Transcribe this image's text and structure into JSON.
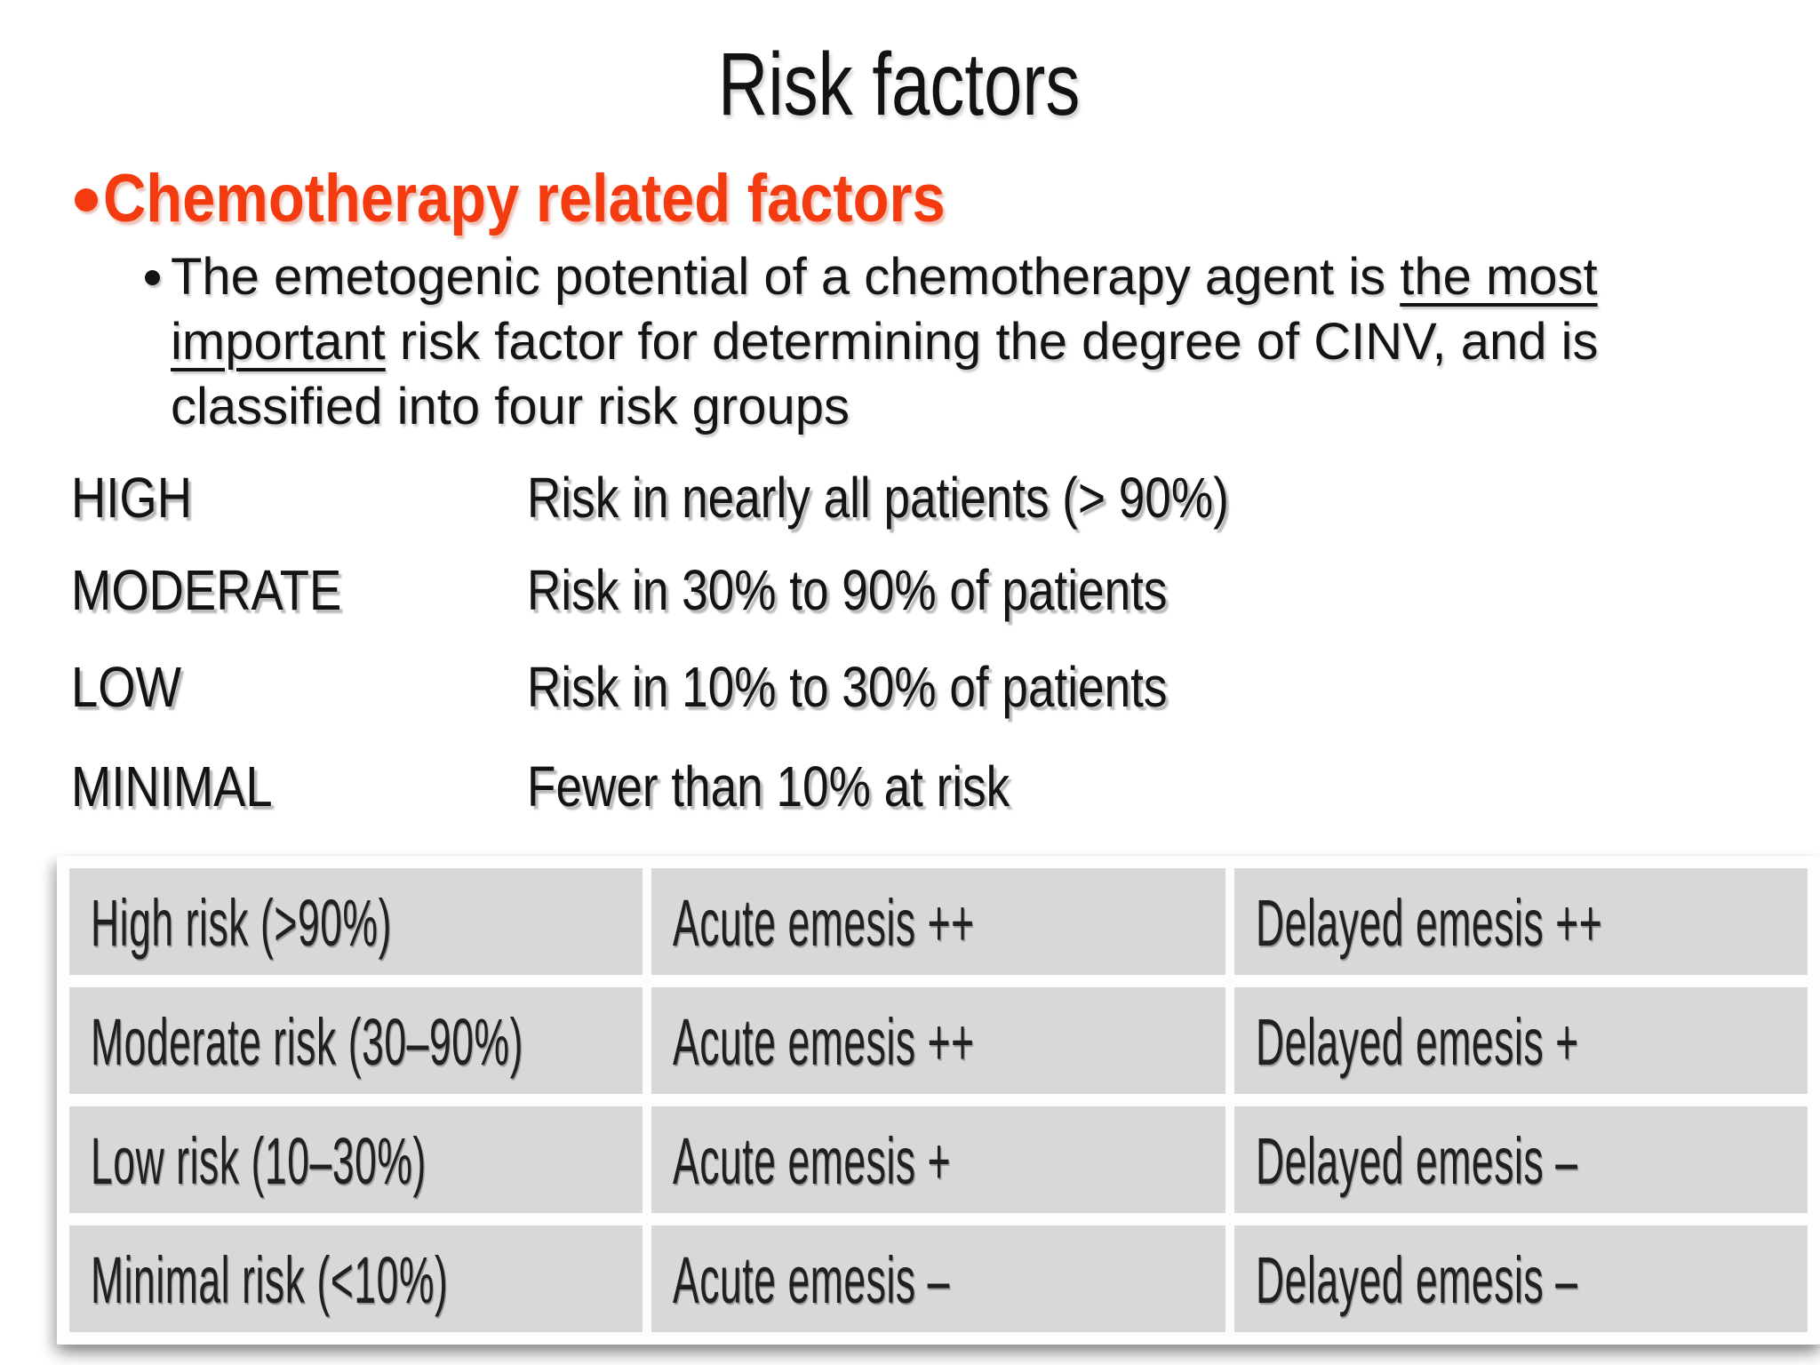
{
  "slide": {
    "title": "Risk factors",
    "heading": "Chemotherapy related factors",
    "paragraph": {
      "line1_text": "The emetogenic potential of a chemotherapy agent is ",
      "line1_underlined": "the most",
      "line2_underlined": "important",
      "line2_text": " risk factor for determining the degree of CINV, and is",
      "line3_text": "classified into four risk groups"
    },
    "risk_levels": [
      {
        "label": "HIGH",
        "desc": "Risk in nearly all patients (> 90%)"
      },
      {
        "label": "MODERATE",
        "desc": "Risk in 30% to 90% of patients"
      },
      {
        "label": "LOW",
        "desc": "Risk in 10% to 30% of patients"
      },
      {
        "label": "MINIMAL",
        "desc": "Fewer than 10% at risk"
      }
    ],
    "table": {
      "rows": [
        [
          "High risk (>90%)",
          "Acute emesis ++",
          "Delayed emesis ++"
        ],
        [
          "Moderate risk (30–90%)",
          "Acute emesis ++",
          "Delayed emesis +"
        ],
        [
          "Low risk (10–30%)",
          "Acute emesis +",
          "Delayed emesis –"
        ],
        [
          "Minimal risk (<10%)",
          "Acute emesis –",
          "Delayed emesis –"
        ]
      ]
    },
    "colors": {
      "accent_red": "#f43b10",
      "table_cell_gray": "#d8d8d8",
      "text_black": "#141414",
      "background": "#ffffff"
    }
  }
}
